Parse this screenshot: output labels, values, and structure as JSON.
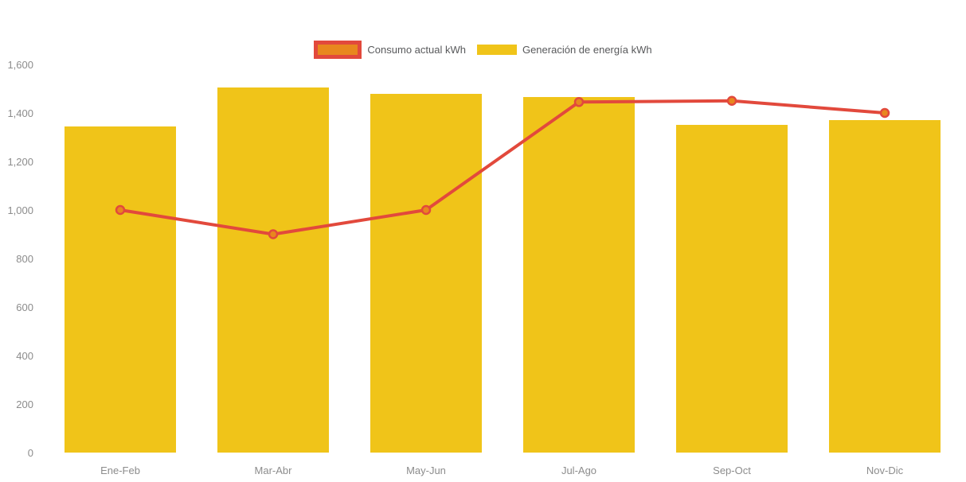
{
  "chart_data": {
    "type": "bar",
    "title": "",
    "categories": [
      "Ene-Feb",
      "Mar-Abr",
      "May-Jun",
      "Jul-Ago",
      "Sep-Oct",
      "Nov-Dic"
    ],
    "series": [
      {
        "name": "Consumo actual kWh",
        "type": "line",
        "values": [
          1000,
          900,
          1000,
          1445,
          1450,
          1400
        ],
        "color": "#e2493c",
        "marker_fill": "#e8871e"
      },
      {
        "name": "Generación de energía kWh",
        "type": "bar",
        "values": [
          1345,
          1505,
          1480,
          1465,
          1350,
          1370
        ],
        "color": "#f0c419"
      }
    ],
    "xlabel": "",
    "ylabel": "",
    "ylim": [
      0,
      1600
    ],
    "ytick_step": 200,
    "ytick_labels": [
      "0",
      "200",
      "400",
      "600",
      "800",
      "1,000",
      "1,200",
      "1,400",
      "1,600"
    ],
    "grid": false,
    "legend_position": "top-center"
  },
  "colors": {
    "background": "#ffffff",
    "axis_text": "#8c8c8c",
    "legend_text": "#58595b",
    "bar_yellow": "#f0c419",
    "line_red": "#e2493c",
    "marker_orange": "#e8871e"
  }
}
